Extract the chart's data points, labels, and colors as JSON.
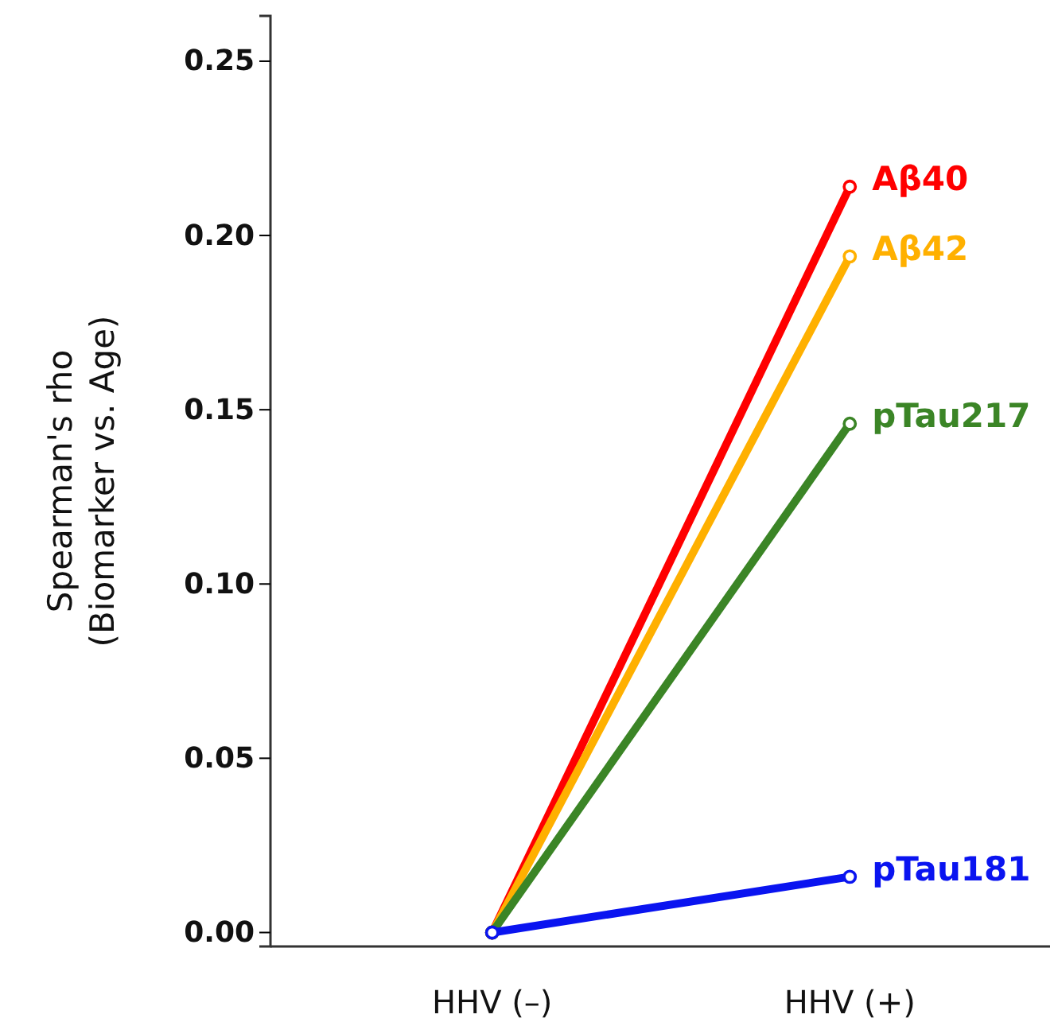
{
  "chart_data": {
    "type": "line",
    "ylabel": "Spearman's rho\n(Biomarker vs. Age)",
    "categories": [
      "HHV (–)",
      "HHV (+)"
    ],
    "ylim": [
      -0.004,
      0.263
    ],
    "yticks": [
      {
        "value": 0,
        "label": "0.00"
      },
      {
        "value": 0.05,
        "label": "0.05"
      },
      {
        "value": 0.1,
        "label": "0.10"
      },
      {
        "value": 0.15,
        "label": "0.15"
      },
      {
        "value": 0.2,
        "label": "0.20"
      },
      {
        "value": 0.25,
        "label": "0.25"
      }
    ],
    "marker": "circle",
    "grid": false,
    "legend": false,
    "series": [
      {
        "name": "Aβ40",
        "color": "#ff0000",
        "values": [
          0,
          0.214
        ]
      },
      {
        "name": "Aβ42",
        "color": "#ffb000",
        "values": [
          0,
          0.194
        ]
      },
      {
        "name": "pTau217",
        "color": "#3b8526",
        "values": [
          0,
          0.146
        ]
      },
      {
        "name": "pTau181",
        "color": "#0a14f0",
        "values": [
          0,
          0.016
        ]
      }
    ]
  }
}
